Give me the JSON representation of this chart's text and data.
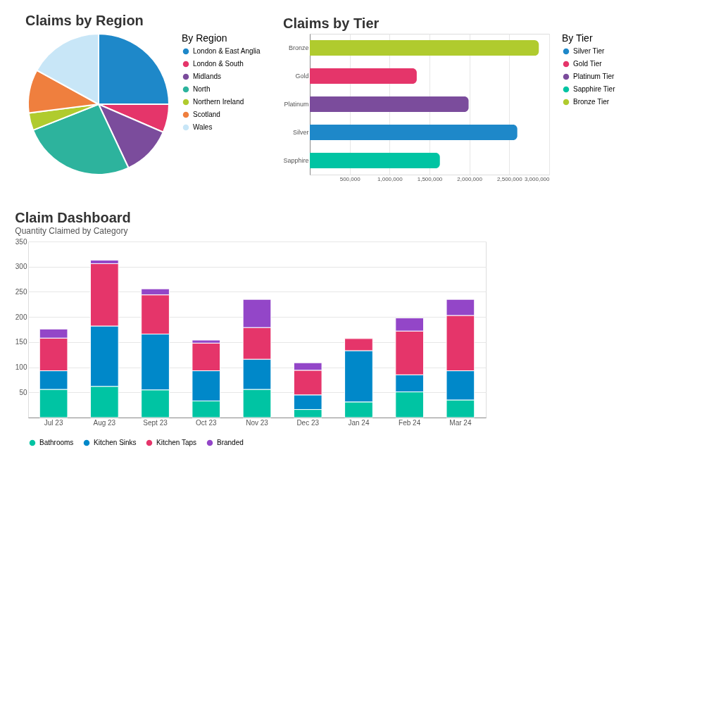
{
  "chart_data": [
    {
      "type": "pie",
      "title": "Claims by Region",
      "legend_title": "By Region",
      "legend": "right",
      "categories": [
        "London & East Anglia",
        "London & South",
        "Midlands",
        "North",
        "Northern Ireland",
        "Scotland",
        "Wales"
      ],
      "values": [
        25,
        6.5,
        11.5,
        26,
        4,
        10,
        17
      ],
      "colors": [
        "#1e88c9",
        "#e5356a",
        "#7b4c9c",
        "#2db39d",
        "#b0cb2e",
        "#ef7f3e",
        "#c8e6f7"
      ]
    },
    {
      "type": "bar",
      "orientation": "horizontal",
      "title": "Claims by Tier",
      "legend_title": "By Tier",
      "legend": "right",
      "grid": "x",
      "categories": [
        "Bronze",
        "Gold",
        "Platinum",
        "Silver",
        "Sapphire"
      ],
      "xlim": [
        0,
        3000000
      ],
      "xticks": [
        {
          "value": 500000,
          "label": "500,000"
        },
        {
          "value": 1000000,
          "label": "1,000,000"
        },
        {
          "value": 1500000,
          "label": "1,500,000"
        },
        {
          "value": 2000000,
          "label": "2,000,000"
        },
        {
          "value": 2500000,
          "label": "2,500,000"
        },
        {
          "value": 3000000,
          "label": "3,000,000"
        }
      ],
      "series": [
        {
          "name": "Silver Tier",
          "color": "#1e88c9",
          "values": [
            null,
            null,
            null,
            2600000,
            null
          ]
        },
        {
          "name": "Gold Tier",
          "color": "#e5356a",
          "values": [
            null,
            1340000,
            null,
            null,
            null
          ]
        },
        {
          "name": "Platinum Tier",
          "color": "#7b4c9c",
          "values": [
            null,
            null,
            1990000,
            null,
            null
          ]
        },
        {
          "name": "Sapphire Tier",
          "color": "#00c4a3",
          "values": [
            null,
            null,
            null,
            null,
            1630000
          ]
        },
        {
          "name": "Bronze Tier",
          "color": "#b0cb2e",
          "values": [
            2870000,
            null,
            null,
            null,
            null
          ]
        }
      ]
    },
    {
      "type": "bar",
      "stacked": true,
      "title": "Claim Dashboard",
      "subtitle": "Quantity Claimed by Category",
      "legend": "bottom",
      "grid": "y",
      "categories": [
        "Jul 23",
        "Aug 23",
        "Sept 23",
        "Oct 23",
        "Nov 23",
        "Dec 23",
        "Jan 24",
        "Feb 24",
        "Mar 24"
      ],
      "ylim": [
        0,
        350
      ],
      "yticks": [
        50,
        100,
        150,
        200,
        250,
        300,
        350
      ],
      "series": [
        {
          "name": "Bathrooms",
          "color": "#00c4a3",
          "values": [
            56,
            62,
            55,
            33,
            56,
            16,
            31,
            51,
            35
          ]
        },
        {
          "name": "Kitchen Sinks",
          "color": "#0088c9",
          "values": [
            37,
            120,
            111,
            60,
            60,
            29,
            102,
            34,
            58
          ]
        },
        {
          "name": "Kitchen Taps",
          "color": "#e5356a",
          "values": [
            65,
            124,
            78,
            55,
            63,
            49,
            24,
            87,
            110
          ]
        },
        {
          "name": "Branded",
          "color": "#9346c8",
          "values": [
            18,
            7,
            12,
            6,
            56,
            15,
            null,
            26,
            32
          ]
        }
      ]
    }
  ]
}
